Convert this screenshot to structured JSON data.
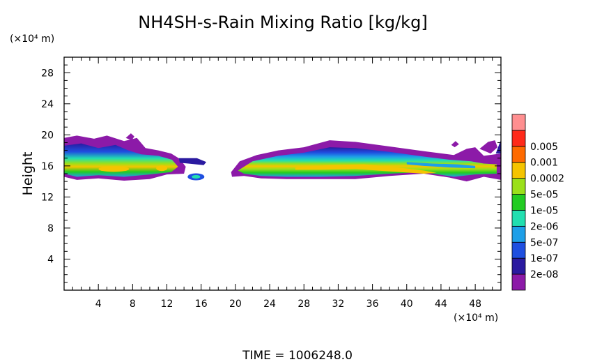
{
  "chart_data": {
    "type": "heatmap",
    "title": "NH4SH-s-Rain Mixing Ratio [kg/kg]",
    "ylabel": "Height",
    "y_unit": "(×10⁴ m)",
    "x_unit": "(×10⁴ m)",
    "footer": "TIME = 1006248.0",
    "xlim": [
      0,
      51
    ],
    "ylim": [
      0,
      30
    ],
    "xticks": [
      4,
      8,
      12,
      16,
      20,
      24,
      28,
      32,
      36,
      40,
      44,
      48
    ],
    "yticks": [
      4,
      8,
      12,
      16,
      20,
      24,
      28
    ],
    "colorbar": {
      "levels": [
        "2e-08",
        "1e-07",
        "5e-07",
        "2e-06",
        "1e-05",
        "5e-05",
        "0.0002",
        "0.001",
        "0.005"
      ],
      "colors": [
        "#8c1aa8",
        "#2a1aa0",
        "#1f4fe0",
        "#1e9fe8",
        "#22dfb0",
        "#22cc22",
        "#9be01a",
        "#f5c400",
        "#ff6a00",
        "#ff2a1a",
        "#ff8f90"
      ]
    },
    "features": [
      {
        "x0": 0,
        "x1": 17,
        "ymin": 14,
        "ymax": 20,
        "peak": 0.8
      },
      {
        "x0": 15,
        "x1": 16.5,
        "ymin": 14.2,
        "ymax": 15.2,
        "peak": 0.3
      },
      {
        "x0": 19.5,
        "x1": 51,
        "ymin": 14,
        "ymax": 19.5,
        "peak": 0.9
      }
    ]
  }
}
